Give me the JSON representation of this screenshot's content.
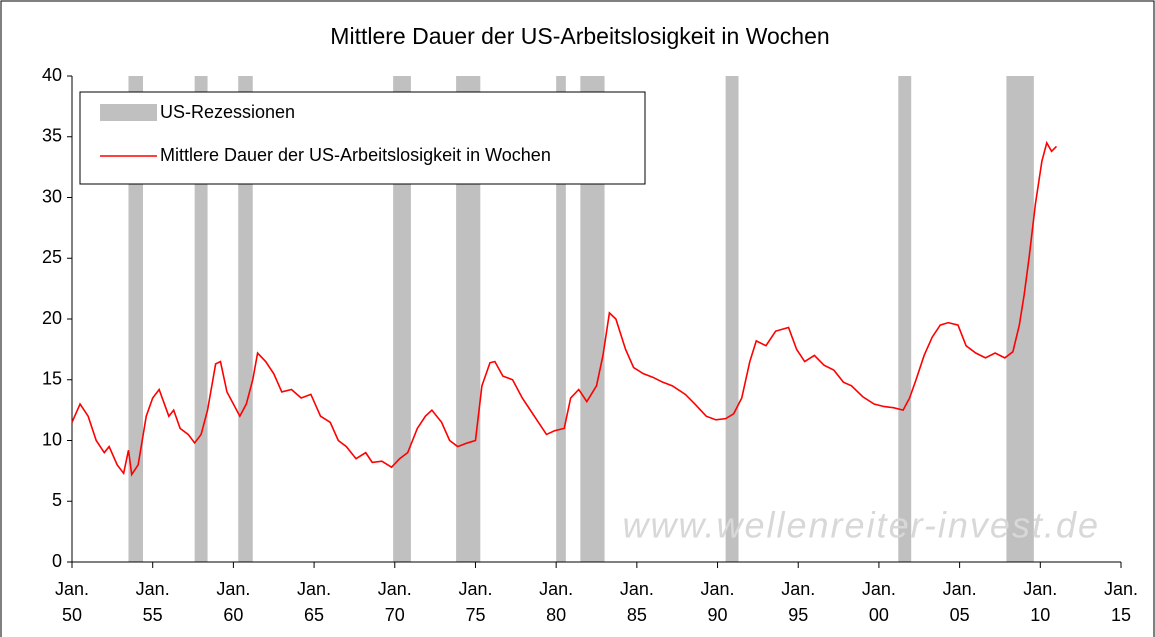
{
  "chart_data": {
    "type": "line",
    "title": "Mittlere Dauer der US-Arbeitslosigkeit in Wochen",
    "watermark": "www.wellenreiter-invest.de",
    "recessions": {
      "name": "US-Rezessionen",
      "color": "#c0c0c0",
      "spans": [
        [
          1953.5,
          1954.4
        ],
        [
          1957.6,
          1958.4
        ],
        [
          1960.3,
          1961.2
        ],
        [
          1969.9,
          1971.0
        ],
        [
          1973.8,
          1975.3
        ],
        [
          1980.0,
          1980.6
        ],
        [
          1981.5,
          1983.0
        ],
        [
          1990.5,
          1991.3
        ],
        [
          2001.2,
          2002.0
        ],
        [
          2007.9,
          2009.6
        ]
      ]
    },
    "series": [
      {
        "name": "Mittlere Dauer der US-Arbeitslosigkeit in Wochen",
        "color": "#ff0000",
        "x": [
          1950.0,
          1950.5,
          1951.0,
          1951.5,
          1952.0,
          1952.3,
          1952.8,
          1953.2,
          1953.5,
          1953.7,
          1954.1,
          1954.6,
          1955.0,
          1955.4,
          1956.0,
          1956.3,
          1956.7,
          1957.2,
          1957.6,
          1958.0,
          1958.4,
          1958.9,
          1959.2,
          1959.6,
          1960.0,
          1960.4,
          1960.8,
          1961.2,
          1961.5,
          1962.0,
          1962.5,
          1963.0,
          1963.6,
          1964.2,
          1964.8,
          1965.4,
          1966.0,
          1966.5,
          1967.0,
          1967.6,
          1968.2,
          1968.6,
          1969.2,
          1969.8,
          1970.3,
          1970.8,
          1971.4,
          1971.9,
          1972.3,
          1972.9,
          1973.4,
          1973.9,
          1974.5,
          1975.0,
          1975.4,
          1975.9,
          1976.2,
          1976.7,
          1977.3,
          1977.9,
          1978.4,
          1978.9,
          1979.4,
          1979.9,
          1980.5,
          1980.9,
          1981.4,
          1981.9,
          1982.5,
          1982.9,
          1983.3,
          1983.7,
          1984.3,
          1984.8,
          1985.4,
          1986.0,
          1986.6,
          1987.2,
          1988.0,
          1988.6,
          1989.3,
          1989.9,
          1990.5,
          1991.0,
          1991.5,
          1992.0,
          1992.4,
          1993.0,
          1993.6,
          1994.4,
          1994.9,
          1995.4,
          1996.0,
          1996.6,
          1997.2,
          1997.8,
          1998.3,
          1999.0,
          1999.7,
          2000.3,
          2000.9,
          2001.5,
          2001.9,
          2002.3,
          2002.8,
          2003.3,
          2003.8,
          2004.3,
          2004.9,
          2005.4,
          2006.0,
          2006.6,
          2007.2,
          2007.8,
          2008.3,
          2008.7,
          2009.0,
          2009.3,
          2009.7,
          2010.1,
          2010.4,
          2010.7,
          2011.0
        ],
        "values": [
          11.5,
          13,
          12,
          10,
          9,
          9.5,
          8,
          7.3,
          9.2,
          7.2,
          8,
          12,
          13.5,
          14.2,
          12,
          12.5,
          11,
          10.5,
          9.8,
          10.5,
          12.5,
          16.3,
          16.5,
          14,
          13,
          12,
          13,
          15,
          17.2,
          16.5,
          15.5,
          14,
          14.2,
          13.5,
          13.8,
          12,
          11.5,
          10,
          9.5,
          8.5,
          9,
          8.2,
          8.3,
          7.8,
          8.5,
          9,
          11,
          12,
          12.5,
          11.5,
          10,
          9.5,
          9.8,
          10,
          14.5,
          16.4,
          16.5,
          15.3,
          15,
          13.5,
          12.5,
          11.5,
          10.5,
          10.8,
          11,
          13.5,
          14.2,
          13.2,
          14.5,
          17,
          20.5,
          20,
          17.5,
          16,
          15.5,
          15.2,
          14.8,
          14.5,
          13.8,
          13,
          12,
          11.7,
          11.8,
          12.2,
          13.5,
          16.5,
          18.2,
          17.8,
          19,
          19.3,
          17.5,
          16.5,
          17,
          16.2,
          15.8,
          14.8,
          14.5,
          13.6,
          13,
          12.8,
          12.7,
          12.5,
          13.5,
          15,
          17,
          18.5,
          19.5,
          19.7,
          19.5,
          17.8,
          17.2,
          16.8,
          17.2,
          16.8,
          17.3,
          19.5,
          22,
          25,
          29.5,
          33,
          34.5,
          33.8,
          34.2
        ]
      }
    ],
    "xlim": [
      1950,
      2015
    ],
    "xticks": [
      {
        "value": 1950,
        "label": "Jan.\n50"
      },
      {
        "value": 1955,
        "label": "Jan.\n55"
      },
      {
        "value": 1960,
        "label": "Jan.\n60"
      },
      {
        "value": 1965,
        "label": "Jan.\n65"
      },
      {
        "value": 1970,
        "label": "Jan.\n70"
      },
      {
        "value": 1975,
        "label": "Jan.\n75"
      },
      {
        "value": 1980,
        "label": "Jan.\n80"
      },
      {
        "value": 1985,
        "label": "Jan.\n85"
      },
      {
        "value": 1990,
        "label": "Jan.\n90"
      },
      {
        "value": 1995,
        "label": "Jan.\n95"
      },
      {
        "value": 2000,
        "label": "Jan.\n00"
      },
      {
        "value": 2005,
        "label": "Jan.\n05"
      },
      {
        "value": 2010,
        "label": "Jan.\n10"
      },
      {
        "value": 2015,
        "label": "Jan.\n15"
      }
    ],
    "ylim": [
      0,
      40
    ],
    "yticks": [
      0,
      5,
      10,
      15,
      20,
      25,
      30,
      35,
      40
    ],
    "legend": "upper-left"
  }
}
